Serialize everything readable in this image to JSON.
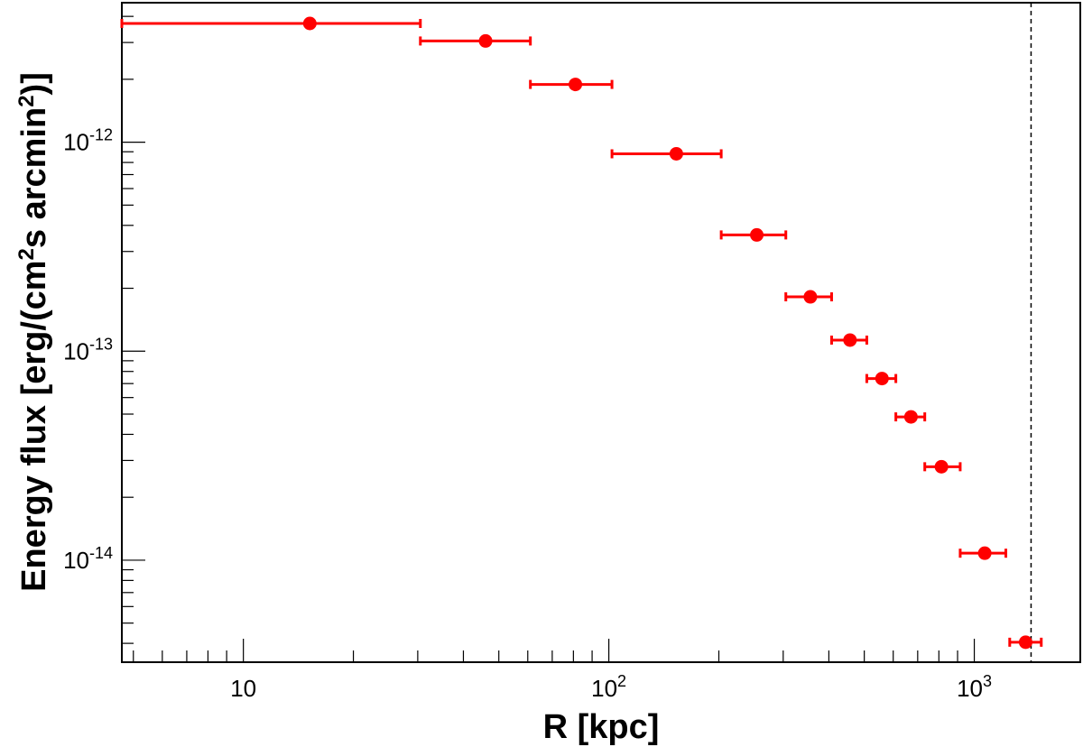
{
  "chart_data": {
    "type": "scatter",
    "title": "",
    "xlabel": "R [kpc]",
    "ylabel_parts": [
      "Energy flux [erg/(cm",
      "2",
      "s arcmin",
      "2",
      ")]"
    ],
    "xscale": "log",
    "yscale": "log",
    "xlim": [
      4.65,
      1950
    ],
    "ylim": [
      3.25e-15,
      4.65e-12
    ],
    "grid": false,
    "legend": "none",
    "marker_color": "#ff0000",
    "xticks": [
      {
        "base": "10",
        "exp": "",
        "value": 10
      },
      {
        "base": "10",
        "exp": "2",
        "value": 100
      },
      {
        "base": "10",
        "exp": "3",
        "value": 1000
      }
    ],
    "yticks": [
      {
        "base": "10",
        "exp": "-14",
        "value": 1e-14
      },
      {
        "base": "10",
        "exp": "-13",
        "value": 1e-13
      },
      {
        "base": "10",
        "exp": "-12",
        "value": 1e-12
      }
    ],
    "reference_line_x": 1430,
    "series": [
      {
        "points": [
          {
            "x": 15.2,
            "xlo": 4.65,
            "xhi": 30.5,
            "y": 3.7e-12
          },
          {
            "x": 46,
            "xlo": 30.5,
            "xhi": 61,
            "y": 3.05e-12
          },
          {
            "x": 81,
            "xlo": 61,
            "xhi": 102,
            "y": 1.89e-12
          },
          {
            "x": 153,
            "xlo": 102,
            "xhi": 203,
            "y": 8.8e-13
          },
          {
            "x": 254,
            "xlo": 203,
            "xhi": 305,
            "y": 3.6e-13
          },
          {
            "x": 356,
            "xlo": 305,
            "xhi": 407,
            "y": 1.82e-13
          },
          {
            "x": 457,
            "xlo": 407,
            "xhi": 508,
            "y": 1.13e-13
          },
          {
            "x": 559,
            "xlo": 508,
            "xhi": 610,
            "y": 7.4e-14
          },
          {
            "x": 671,
            "xlo": 610,
            "xhi": 732,
            "y": 4.85e-14
          },
          {
            "x": 813,
            "xlo": 732,
            "xhi": 915,
            "y": 2.8e-14
          },
          {
            "x": 1068,
            "xlo": 915,
            "xhi": 1220,
            "y": 1.08e-14
          },
          {
            "x": 1382,
            "xlo": 1250,
            "xhi": 1525,
            "y": 4.05e-15
          }
        ]
      }
    ]
  }
}
